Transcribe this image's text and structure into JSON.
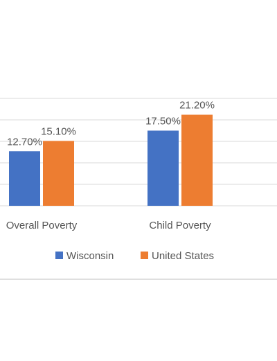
{
  "chart_data": {
    "type": "bar",
    "title": "",
    "xlabel": "",
    "ylabel": "",
    "categories": [
      "Overall Poverty",
      "Child Poverty"
    ],
    "series": [
      {
        "name": "Wisconsin",
        "values": [
          12.7,
          17.5
        ],
        "labels": [
          "12.70%",
          "17.50%"
        ],
        "color": "#4472C4"
      },
      {
        "name": "United States",
        "values": [
          15.1,
          21.2
        ],
        "labels": [
          "15.10%",
          "21.20%"
        ],
        "color": "#ED7D31"
      }
    ],
    "ylim": [
      0,
      25
    ],
    "grid": true,
    "legend_position": "bottom",
    "colors": {
      "gridline": "#d9d9d9",
      "text": "#555555",
      "border": "#bfbfbf"
    }
  }
}
